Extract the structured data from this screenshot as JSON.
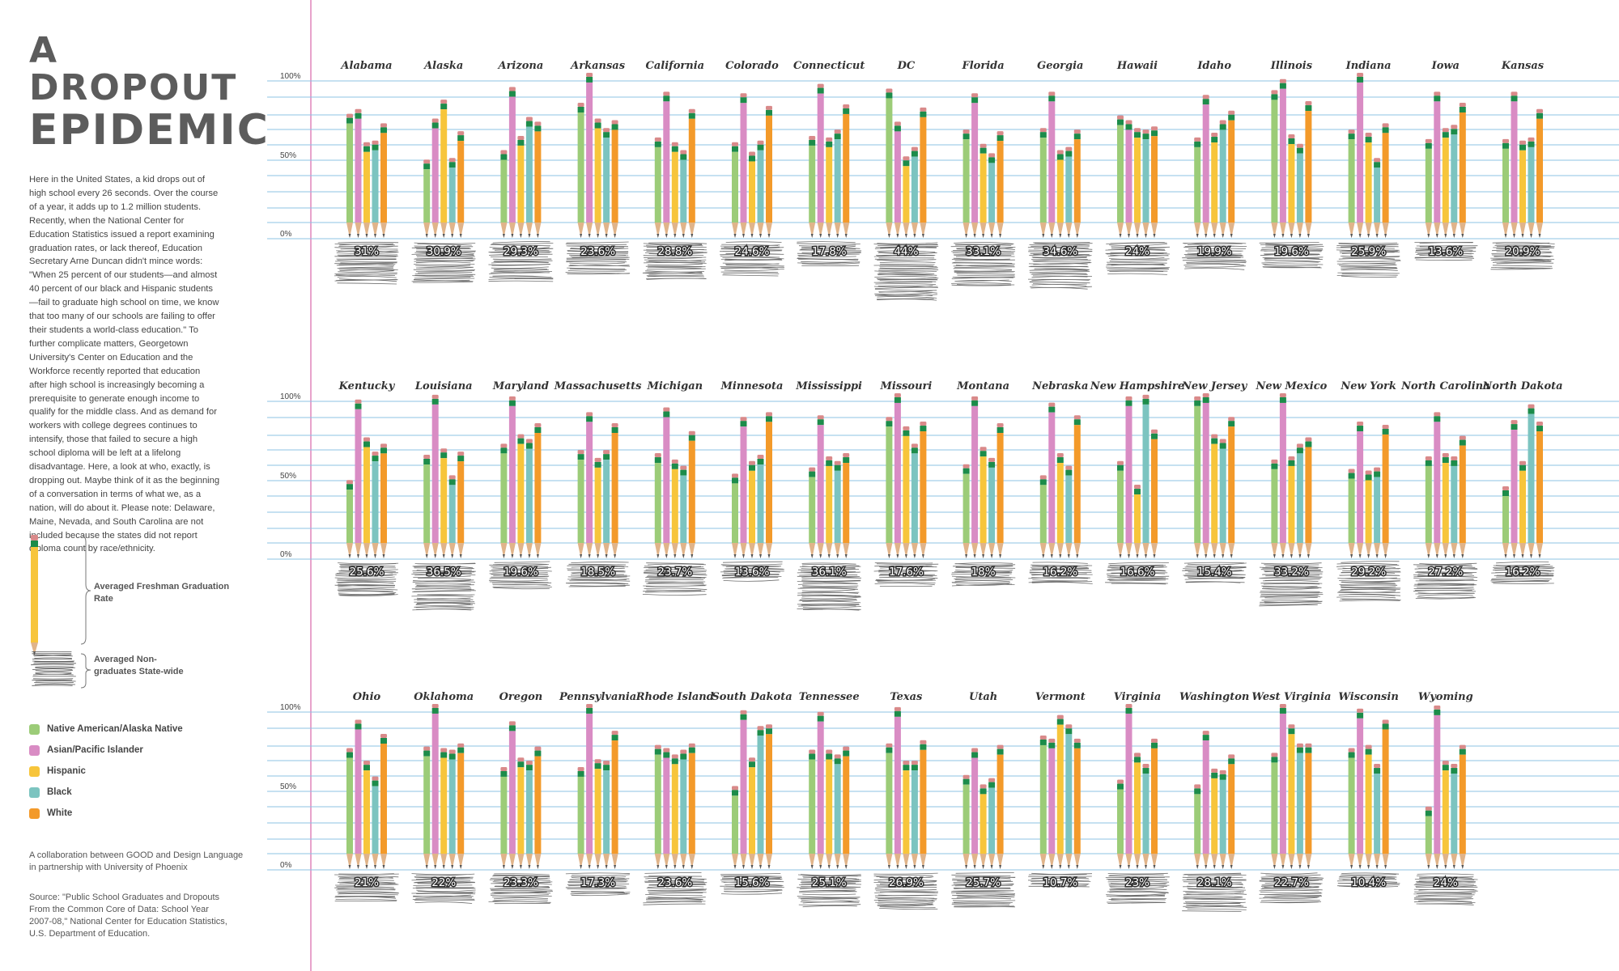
{
  "title": {
    "line1": "A DROPOUT",
    "line2": "EPIDEMIC"
  },
  "intro": "Here in the United States, a kid drops out of high school every 26 seconds. Over the course of a year, it adds up to 1.2 million students. Recently, when the National Center for Education Statistics issued a report examining graduation rates, or lack thereof, Education Secretary Arne Duncan didn't mince words: \"When 25 percent of our students—and almost 40 percent of our black and Hispanic students—fail to graduate high school on time, we know that too many of our schools are failing to offer their students a world-class education.\" To further complicate matters, Georgetown University's Center on Education and the Workforce recently reported that education after high school is increasingly becoming a prerequisite to generate enough income to qualify for the middle class. And as demand for workers with college degrees continues to intensify, those that failed to secure a high school diploma will be left at a lifelong disadvantage. Here, a look at who, exactly, is dropping out. Maybe think of it as the beginning of a conversation in terms of what we, as a nation, will do about it. Please note: Delaware, Maine, Nevada, and South Carolina are not included because the states did not report diploma count by race/ethnicity.",
  "key": {
    "pencil": "Averaged Freshman Graduation Rate",
    "scribble": "Averaged Non-graduates State-wide"
  },
  "credit": "A collaboration between GOOD and Design Language in partnership with University of Phoenix",
  "source": "Source: \"Public School Graduates and Dropouts From the Common Core of Data: School Year 2007-08,\" National Center for Education Statistics, U.S. Department of Education.",
  "colors": {
    "margin_line": "#e8a3cc",
    "rule_line": "#8cc3e3",
    "eraser": "#d98a8a",
    "ferrule": "#1c8c4a",
    "wood": "#e0b48a",
    "lead": "#555555",
    "scribble": "#555555"
  },
  "chart_data": {
    "type": "bar",
    "axis_labels": [
      "100%",
      "50%",
      "0%"
    ],
    "ylim": [
      0,
      100
    ],
    "legend_placement": "left",
    "series": [
      {
        "name": "Native American/Alaska Native",
        "color": "#9ccc78"
      },
      {
        "name": "Asian/Pacific Islander",
        "color": "#d98cc4"
      },
      {
        "name": "Hispanic",
        "color": "#f7c53b"
      },
      {
        "name": "Black",
        "color": "#7cc4c0"
      },
      {
        "name": "White",
        "color": "#f39a2a"
      }
    ],
    "rows": [
      [
        {
          "state": "Alabama",
          "rates": [
            73,
            76,
            55,
            56,
            67
          ],
          "dropout": "31%",
          "dropout_value": 31
        },
        {
          "state": "Alaska",
          "rates": [
            44,
            70,
            82,
            45,
            62
          ],
          "dropout": "30.9%",
          "dropout_value": 30.9
        },
        {
          "state": "Arizona",
          "rates": [
            50,
            90,
            59,
            71,
            68
          ],
          "dropout": "29.3%",
          "dropout_value": 29.3
        },
        {
          "state": "Arkansas",
          "rates": [
            80,
            99,
            70,
            64,
            69
          ],
          "dropout": "23.6%",
          "dropout_value": 23.6
        },
        {
          "state": "California",
          "rates": [
            58,
            87,
            55,
            50,
            76
          ],
          "dropout": "28.8%",
          "dropout_value": 28.8
        },
        {
          "state": "Colorado",
          "rates": [
            55,
            86,
            49,
            56,
            78
          ],
          "dropout": "24.6%",
          "dropout_value": 24.6
        },
        {
          "state": "Connecticut",
          "rates": [
            59,
            92,
            58,
            63,
            79
          ],
          "dropout": "17.8%",
          "dropout_value": 17.8
        },
        {
          "state": "DC",
          "rates": [
            89,
            68,
            46,
            52,
            77
          ],
          "dropout": "44%",
          "dropout_value": 44
        },
        {
          "state": "Florida",
          "rates": [
            63,
            86,
            54,
            48,
            62
          ],
          "dropout": "33.1%",
          "dropout_value": 33.1
        },
        {
          "state": "Georgia",
          "rates": [
            64,
            87,
            50,
            52,
            63
          ],
          "dropout": "34.6%",
          "dropout_value": 34.6
        },
        {
          "state": "Hawaii",
          "rates": [
            72,
            69,
            64,
            63,
            65
          ],
          "dropout": "24%",
          "dropout_value": 24
        },
        {
          "state": "Idaho",
          "rates": [
            58,
            85,
            61,
            69,
            75
          ],
          "dropout": "19.9%",
          "dropout_value": 19.9
        },
        {
          "state": "Illinois",
          "rates": [
            88,
            95,
            60,
            54,
            81
          ],
          "dropout": "19.6%",
          "dropout_value": 19.6
        },
        {
          "state": "Indiana",
          "rates": [
            63,
            99,
            61,
            45,
            67
          ],
          "dropout": "25.9%",
          "dropout_value": 25.9
        },
        {
          "state": "Iowa",
          "rates": [
            57,
            87,
            64,
            66,
            80
          ],
          "dropout": "13.6%",
          "dropout_value": 13.6
        },
        {
          "state": "Kansas",
          "rates": [
            57,
            87,
            56,
            58,
            76
          ],
          "dropout": "20.9%",
          "dropout_value": 20.9
        }
      ],
      [
        {
          "state": "Kentucky",
          "rates": [
            44,
            95,
            71,
            62,
            67
          ],
          "dropout": "25.6%",
          "dropout_value": 25.6
        },
        {
          "state": "Louisiana",
          "rates": [
            60,
            98,
            64,
            47,
            62
          ],
          "dropout": "36.5%",
          "dropout_value": 36.5
        },
        {
          "state": "Maryland",
          "rates": [
            67,
            97,
            73,
            70,
            80
          ],
          "dropout": "19.6%",
          "dropout_value": 19.6
        },
        {
          "state": "Massachusetts",
          "rates": [
            63,
            87,
            58,
            63,
            80
          ],
          "dropout": "18.5%",
          "dropout_value": 18.5
        },
        {
          "state": "Michigan",
          "rates": [
            61,
            90,
            57,
            53,
            75
          ],
          "dropout": "23.7%",
          "dropout_value": 23.7
        },
        {
          "state": "Minnesota",
          "rates": [
            48,
            84,
            56,
            60,
            87
          ],
          "dropout": "13.6%",
          "dropout_value": 13.6
        },
        {
          "state": "Mississippi",
          "rates": [
            52,
            85,
            59,
            56,
            61
          ],
          "dropout": "36.1%",
          "dropout_value": 36.1
        },
        {
          "state": "Missouri",
          "rates": [
            84,
            99,
            78,
            67,
            81
          ],
          "dropout": "17.6%",
          "dropout_value": 17.6
        },
        {
          "state": "Montana",
          "rates": [
            54,
            97,
            65,
            58,
            80
          ],
          "dropout": "18%",
          "dropout_value": 18
        },
        {
          "state": "Nebraska",
          "rates": [
            47,
            93,
            61,
            53,
            85
          ],
          "dropout": "16.2%",
          "dropout_value": 16.2
        },
        {
          "state": "New Hampshire",
          "rates": [
            56,
            97,
            41,
            98,
            76
          ],
          "dropout": "16.6%",
          "dropout_value": 16.6
        },
        {
          "state": "New Jersey",
          "rates": [
            97,
            99,
            73,
            70,
            84
          ],
          "dropout": "15.4%",
          "dropout_value": 15.4
        },
        {
          "state": "New Mexico",
          "rates": [
            57,
            99,
            59,
            67,
            71
          ],
          "dropout": "33.2%",
          "dropout_value": 33.2
        },
        {
          "state": "New York",
          "rates": [
            51,
            81,
            50,
            52,
            79
          ],
          "dropout": "29.2%",
          "dropout_value": 29.2
        },
        {
          "state": "North Carolina",
          "rates": [
            59,
            87,
            61,
            59,
            72
          ],
          "dropout": "27.2%",
          "dropout_value": 27.2
        },
        {
          "state": "North Dakota",
          "rates": [
            40,
            82,
            56,
            92,
            81
          ],
          "dropout": "16.2%",
          "dropout_value": 16.2
        }
      ],
      [
        {
          "state": "Ohio",
          "rates": [
            71,
            89,
            63,
            53,
            80
          ],
          "dropout": "21%",
          "dropout_value": 21
        },
        {
          "state": "Oklahoma",
          "rates": [
            72,
            99,
            71,
            70,
            74
          ],
          "dropout": "22%",
          "dropout_value": 22
        },
        {
          "state": "Oregon",
          "rates": [
            59,
            88,
            65,
            63,
            72
          ],
          "dropout": "23.3%",
          "dropout_value": 23.3
        },
        {
          "state": "Pennsylvania",
          "rates": [
            59,
            99,
            64,
            63,
            82
          ],
          "dropout": "17.3%",
          "dropout_value": 17.3
        },
        {
          "state": "Rhode Island",
          "rates": [
            73,
            71,
            67,
            70,
            74
          ],
          "dropout": "23.6%",
          "dropout_value": 23.6
        },
        {
          "state": "South Dakota",
          "rates": [
            47,
            95,
            65,
            85,
            86
          ],
          "dropout": "15.6%",
          "dropout_value": 15.6
        },
        {
          "state": "Tennessee",
          "rates": [
            70,
            94,
            70,
            67,
            72
          ],
          "dropout": "25.1%",
          "dropout_value": 25.1
        },
        {
          "state": "Texas",
          "rates": [
            74,
            97,
            63,
            63,
            76
          ],
          "dropout": "26.9%",
          "dropout_value": 26.9
        },
        {
          "state": "Utah",
          "rates": [
            54,
            71,
            48,
            52,
            73
          ],
          "dropout": "25.7%",
          "dropout_value": 25.7
        },
        {
          "state": "Vermont",
          "rates": [
            79,
            77,
            92,
            86,
            77
          ],
          "dropout": "10.7%",
          "dropout_value": 10.7
        },
        {
          "state": "Virginia",
          "rates": [
            51,
            99,
            68,
            61,
            77
          ],
          "dropout": "23%",
          "dropout_value": 23
        },
        {
          "state": "Washington",
          "rates": [
            48,
            82,
            58,
            57,
            67
          ],
          "dropout": "28.1%",
          "dropout_value": 28.1
        },
        {
          "state": "West Virginia",
          "rates": [
            68,
            99,
            86,
            74,
            74
          ],
          "dropout": "22.7%",
          "dropout_value": 22.7
        },
        {
          "state": "Wisconsin",
          "rates": [
            71,
            96,
            73,
            61,
            89
          ],
          "dropout": "10.4%",
          "dropout_value": 10.4
        },
        {
          "state": "Wyoming",
          "rates": [
            34,
            98,
            63,
            61,
            73
          ],
          "dropout": "24%",
          "dropout_value": 24
        }
      ]
    ]
  }
}
